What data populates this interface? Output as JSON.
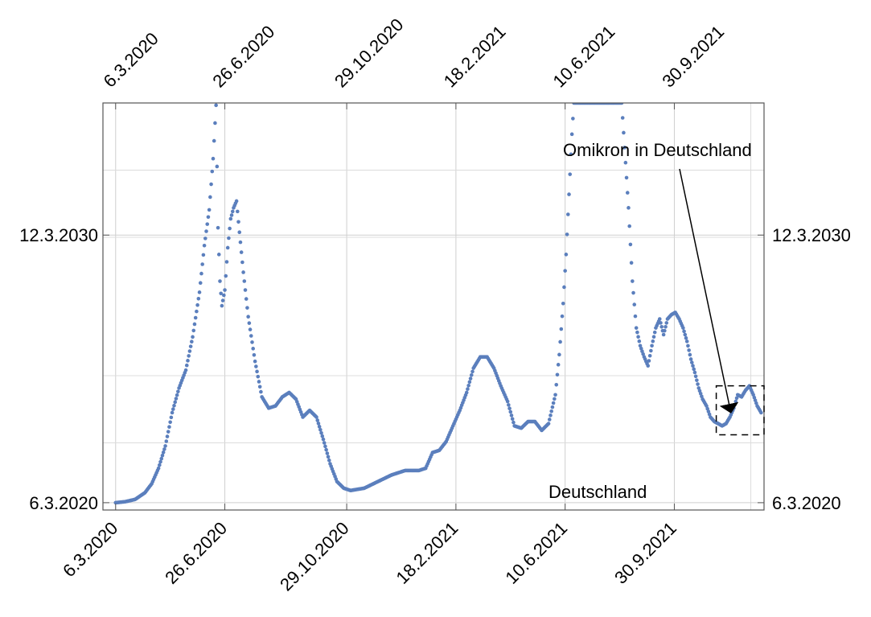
{
  "chart_data": {
    "type": "scatter",
    "title": "",
    "xlabel": "",
    "ylabel": "",
    "grid": true,
    "x_axis_kind": "date",
    "x_ticks": [
      "6.3.2020",
      "26.6.2020",
      "29.10.2020",
      "18.2.2021",
      "10.6.2021",
      "30.9.2021"
    ],
    "y_ticks": [
      "6.3.2020",
      "12.3.2030"
    ],
    "xlim": [
      "2020-02-22",
      "2021-12-31"
    ],
    "ylim": [
      "2019-11-27",
      "2035-02-20"
    ],
    "series": [
      {
        "color": "#5b7fbd",
        "points": [
          [
            "2020-03-06",
            "2020-03-06"
          ],
          [
            "2020-03-16",
            "2020-03-20"
          ],
          [
            "2020-03-26",
            "2020-04-20"
          ],
          [
            "2020-04-05",
            "2020-07-20"
          ],
          [
            "2020-04-12",
            "2020-11-20"
          ],
          [
            "2020-04-19",
            "2021-06-20"
          ],
          [
            "2020-04-26",
            "2022-04-20"
          ],
          [
            "2020-05-03",
            "2023-07-20"
          ],
          [
            "2020-05-10",
            "2024-06-20"
          ],
          [
            "2020-05-17",
            "2025-02-20"
          ],
          [
            "2020-05-24",
            "2026-05-20"
          ],
          [
            "2020-05-31",
            "2028-01-20"
          ],
          [
            "2020-06-05",
            "2029-10-20"
          ],
          [
            "2020-06-10",
            "2031-02-20"
          ],
          [
            "2020-06-14",
            "2033-01-20"
          ],
          [
            "2020-06-17",
            "2035-01-20"
          ],
          [
            "2020-06-19",
            "2030-06-20"
          ],
          [
            "2020-06-21",
            "2028-06-20"
          ],
          [
            "2020-06-23",
            "2027-07-20"
          ],
          [
            "2020-06-26",
            "2028-02-20"
          ],
          [
            "2020-06-29",
            "2029-09-20"
          ],
          [
            "2020-07-02",
            "2030-10-20"
          ],
          [
            "2020-07-05",
            "2031-03-20"
          ],
          [
            "2020-07-08",
            "2031-06-20"
          ],
          [
            "2020-07-11",
            "2030-04-20"
          ],
          [
            "2020-07-15",
            "2028-10-20"
          ],
          [
            "2020-07-20",
            "2027-02-20"
          ],
          [
            "2020-07-27",
            "2025-06-20"
          ],
          [
            "2020-08-03",
            "2024-02-20"
          ],
          [
            "2020-08-10",
            "2023-09-20"
          ],
          [
            "2020-08-17",
            "2023-10-20"
          ],
          [
            "2020-08-24",
            "2024-02-20"
          ],
          [
            "2020-08-31",
            "2024-04-20"
          ],
          [
            "2020-09-07",
            "2024-01-20"
          ],
          [
            "2020-09-14",
            "2023-05-20"
          ],
          [
            "2020-09-21",
            "2023-08-20"
          ],
          [
            "2020-09-28",
            "2023-05-20"
          ],
          [
            "2020-10-05",
            "2022-07-20"
          ],
          [
            "2020-10-12",
            "2021-08-20"
          ],
          [
            "2020-10-19",
            "2020-12-20"
          ],
          [
            "2020-10-26",
            "2020-09-20"
          ],
          [
            "2020-11-02",
            "2020-08-20"
          ],
          [
            "2020-11-16",
            "2020-09-20"
          ],
          [
            "2020-11-30",
            "2020-12-20"
          ],
          [
            "2020-12-14",
            "2021-03-20"
          ],
          [
            "2020-12-28",
            "2021-05-20"
          ],
          [
            "2021-01-11",
            "2021-05-20"
          ],
          [
            "2021-01-18",
            "2021-06-20"
          ],
          [
            "2021-01-25",
            "2022-01-20"
          ],
          [
            "2021-02-01",
            "2022-02-20"
          ],
          [
            "2021-02-08",
            "2022-06-20"
          ],
          [
            "2021-02-15",
            "2023-01-20"
          ],
          [
            "2021-02-22",
            "2023-08-20"
          ],
          [
            "2021-03-01",
            "2024-04-20"
          ],
          [
            "2021-03-08",
            "2025-03-20"
          ],
          [
            "2021-03-15",
            "2025-08-20"
          ],
          [
            "2021-03-22",
            "2025-08-20"
          ],
          [
            "2021-03-29",
            "2025-03-20"
          ],
          [
            "2021-04-05",
            "2024-07-20"
          ],
          [
            "2021-04-12",
            "2023-12-20"
          ],
          [
            "2021-04-19",
            "2023-01-20"
          ],
          [
            "2021-04-26",
            "2022-12-20"
          ],
          [
            "2021-05-03",
            "2023-03-20"
          ],
          [
            "2021-05-10",
            "2023-03-20"
          ],
          [
            "2021-05-17",
            "2022-11-20"
          ],
          [
            "2021-05-24",
            "2023-02-20"
          ],
          [
            "2021-05-31",
            "2024-03-20"
          ],
          [
            "2021-06-04",
            "2025-09-20"
          ],
          [
            "2021-06-08",
            "2027-08-20"
          ],
          [
            "2021-06-11",
            "2029-06-20"
          ],
          [
            "2021-06-14",
            "2031-09-20"
          ],
          [
            "2021-06-17",
            "2033-12-20"
          ],
          [
            "2021-06-19",
            "2035-02-20"
          ],
          [
            "2021-08-07",
            "2035-02-20"
          ],
          [
            "2021-08-10",
            "2033-06-20"
          ],
          [
            "2021-08-14",
            "2031-03-20"
          ],
          [
            "2021-08-18",
            "2028-06-20"
          ],
          [
            "2021-08-22",
            "2026-09-20"
          ],
          [
            "2021-08-26",
            "2026-01-20"
          ],
          [
            "2021-08-30",
            "2025-08-20"
          ],
          [
            "2021-09-03",
            "2025-04-20"
          ],
          [
            "2021-09-07",
            "2026-01-20"
          ],
          [
            "2021-09-11",
            "2026-09-20"
          ],
          [
            "2021-09-15",
            "2027-01-20"
          ],
          [
            "2021-09-19",
            "2026-06-20"
          ],
          [
            "2021-09-23",
            "2027-01-20"
          ],
          [
            "2021-09-27",
            "2027-03-20"
          ],
          [
            "2021-10-01",
            "2027-04-20"
          ],
          [
            "2021-10-05",
            "2027-01-20"
          ],
          [
            "2021-10-09",
            "2026-09-20"
          ],
          [
            "2021-10-13",
            "2026-03-20"
          ],
          [
            "2021-10-17",
            "2025-07-20"
          ],
          [
            "2021-10-21",
            "2025-01-20"
          ],
          [
            "2021-10-25",
            "2024-06-20"
          ],
          [
            "2021-10-29",
            "2024-01-20"
          ],
          [
            "2021-11-02",
            "2023-10-20"
          ],
          [
            "2021-11-06",
            "2023-05-20"
          ],
          [
            "2021-11-10",
            "2023-03-20"
          ],
          [
            "2021-11-14",
            "2023-02-20"
          ],
          [
            "2021-11-18",
            "2023-01-20"
          ],
          [
            "2021-11-22",
            "2023-02-20"
          ],
          [
            "2021-11-26",
            "2023-05-20"
          ],
          [
            "2021-11-30",
            "2023-09-20"
          ],
          [
            "2021-12-04",
            "2024-03-20"
          ],
          [
            "2021-12-08",
            "2024-02-20"
          ],
          [
            "2021-12-12",
            "2024-05-20"
          ],
          [
            "2021-12-16",
            "2024-07-20"
          ],
          [
            "2021-12-20",
            "2024-03-20"
          ],
          [
            "2021-12-24",
            "2023-10-20"
          ],
          [
            "2021-12-28",
            "2023-07-20"
          ]
        ]
      }
    ],
    "annotations": {
      "arrow_label": "Omikron in Deutschland",
      "arrow_target": [
        "2021-11-27",
        "2023-07-20"
      ],
      "box_range": {
        "x": [
          "2021-11-12",
          "2021-12-31"
        ],
        "y": [
          "2022-09-20",
          "2024-07-20"
        ]
      },
      "region_label": "Deutschland"
    }
  }
}
